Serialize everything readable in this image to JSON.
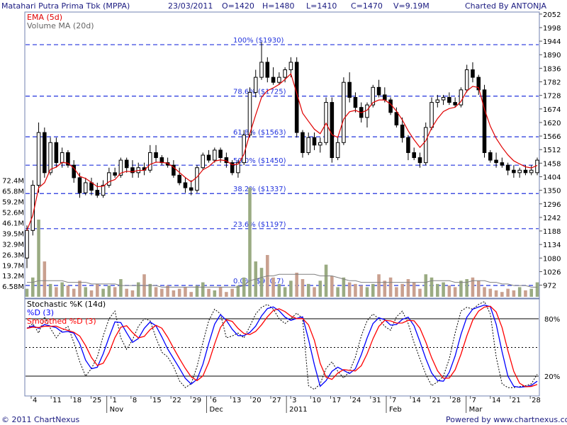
{
  "header": {
    "title": "Matahari Putra Prima Tbk (MPPA)",
    "date": "23/03/2011",
    "open": "O=1420",
    "high": "H=1480",
    "low": "L=1410",
    "close": "C=1470",
    "volume": "V=9.19M",
    "credit": "Charted By ANTONJA"
  },
  "footer": {
    "copyright": "© 2011 ChartNexus",
    "powered": "Powered by www.chartnexus.com"
  },
  "colors": {
    "up_candle": "#ffffff",
    "down_candle": "#000000",
    "ema": "#e00000",
    "volume_ma": "#808080",
    "volume_up": "#9aab82",
    "volume_down": "#c9a08f",
    "fib_line": "#2233dd",
    "stoch_k": "#000000",
    "stoch_d": "#0000ff",
    "stoch_smoothed": "#ff0000",
    "text": "#1a1a80"
  },
  "chart_data": [
    {
      "type": "candlestick",
      "indicator_legend": [
        "EMA (5d)",
        "Volume MA (20d)"
      ],
      "y_ticks": [
        2052,
        1998,
        1944,
        1890,
        1836,
        1782,
        1728,
        1674,
        1620,
        1566,
        1512,
        1458,
        1404,
        1350,
        1296,
        1242,
        1188,
        1134,
        1080,
        1026,
        972
      ],
      "ylim": [
        920,
        2060
      ],
      "x_tick_labels": [
        "4",
        "11",
        "18",
        "25",
        "1",
        "8",
        "15",
        "22",
        "29",
        "6",
        "13",
        "20",
        "27",
        "3",
        "10",
        "17",
        "24",
        "31",
        "7",
        "14",
        "21",
        "28",
        "7",
        "14",
        "21",
        "28"
      ],
      "month_labels": [
        "Nov",
        "Dec",
        "2011",
        "Feb",
        "Mar"
      ],
      "fibonacci": [
        {
          "label": "100%  ($1930)",
          "value": 1930
        },
        {
          "label": "78.6%  ($1725)",
          "value": 1725
        },
        {
          "label": "61.8%  ($1563)",
          "value": 1563
        },
        {
          "label": "50.0%  ($1450)",
          "value": 1450
        },
        {
          "label": "38.2%  ($1337)",
          "value": 1337
        },
        {
          "label": "23.6%  ($1197)",
          "value": 1197
        },
        {
          "label": "0.0%  ($970.7)",
          "value": 970.7
        }
      ],
      "candles": [
        [
          1080,
          1210,
          1040,
          1190
        ],
        [
          1190,
          1390,
          1170,
          1370
        ],
        [
          1370,
          1620,
          1340,
          1580
        ],
        [
          1580,
          1600,
          1400,
          1420
        ],
        [
          1420,
          1560,
          1410,
          1540
        ],
        [
          1540,
          1560,
          1440,
          1460
        ],
        [
          1460,
          1520,
          1440,
          1500
        ],
        [
          1500,
          1510,
          1440,
          1450
        ],
        [
          1450,
          1470,
          1380,
          1400
        ],
        [
          1400,
          1420,
          1320,
          1340
        ],
        [
          1340,
          1400,
          1330,
          1380
        ],
        [
          1380,
          1400,
          1330,
          1350
        ],
        [
          1350,
          1380,
          1320,
          1330
        ],
        [
          1330,
          1390,
          1320,
          1370
        ],
        [
          1370,
          1440,
          1360,
          1420
        ],
        [
          1420,
          1440,
          1400,
          1410
        ],
        [
          1410,
          1480,
          1400,
          1470
        ],
        [
          1470,
          1480,
          1420,
          1440
        ],
        [
          1440,
          1470,
          1400,
          1420
        ],
        [
          1420,
          1460,
          1400,
          1440
        ],
        [
          1440,
          1460,
          1410,
          1430
        ],
        [
          1430,
          1530,
          1420,
          1500
        ],
        [
          1500,
          1530,
          1460,
          1480
        ],
        [
          1480,
          1490,
          1450,
          1460
        ],
        [
          1460,
          1480,
          1440,
          1450
        ],
        [
          1450,
          1470,
          1400,
          1410
        ],
        [
          1410,
          1440,
          1370,
          1380
        ],
        [
          1380,
          1400,
          1340,
          1360
        ],
        [
          1360,
          1390,
          1330,
          1350
        ],
        [
          1350,
          1450,
          1340,
          1440
        ],
        [
          1440,
          1500,
          1430,
          1490
        ],
        [
          1490,
          1510,
          1460,
          1470
        ],
        [
          1470,
          1520,
          1460,
          1510
        ],
        [
          1510,
          1520,
          1460,
          1480
        ],
        [
          1480,
          1500,
          1440,
          1460
        ],
        [
          1460,
          1470,
          1410,
          1420
        ],
        [
          1420,
          1470,
          1400,
          1460
        ],
        [
          1460,
          1590,
          1450,
          1570
        ],
        [
          1570,
          1760,
          1560,
          1740
        ],
        [
          1740,
          1830,
          1720,
          1800
        ],
        [
          1800,
          1940,
          1790,
          1860
        ],
        [
          1860,
          1880,
          1780,
          1800
        ],
        [
          1800,
          1840,
          1770,
          1780
        ],
        [
          1780,
          1820,
          1770,
          1800
        ],
        [
          1800,
          1840,
          1780,
          1830
        ],
        [
          1830,
          1880,
          1800,
          1860
        ],
        [
          1860,
          1880,
          1560,
          1580
        ],
        [
          1580,
          1590,
          1480,
          1500
        ],
        [
          1500,
          1580,
          1490,
          1560
        ],
        [
          1560,
          1580,
          1510,
          1530
        ],
        [
          1530,
          1560,
          1500,
          1540
        ],
        [
          1540,
          1720,
          1530,
          1700
        ],
        [
          1700,
          1720,
          1460,
          1480
        ],
        [
          1480,
          1560,
          1470,
          1540
        ],
        [
          1540,
          1800,
          1530,
          1780
        ],
        [
          1780,
          1820,
          1700,
          1720
        ],
        [
          1720,
          1740,
          1660,
          1680
        ],
        [
          1680,
          1700,
          1620,
          1640
        ],
        [
          1640,
          1700,
          1600,
          1690
        ],
        [
          1690,
          1770,
          1680,
          1760
        ],
        [
          1760,
          1790,
          1720,
          1730
        ],
        [
          1730,
          1760,
          1700,
          1710
        ],
        [
          1710,
          1720,
          1650,
          1660
        ],
        [
          1660,
          1680,
          1600,
          1610
        ],
        [
          1610,
          1640,
          1540,
          1560
        ],
        [
          1560,
          1570,
          1470,
          1500
        ],
        [
          1500,
          1520,
          1470,
          1480
        ],
        [
          1480,
          1500,
          1440,
          1460
        ],
        [
          1460,
          1620,
          1450,
          1600
        ],
        [
          1600,
          1720,
          1590,
          1700
        ],
        [
          1700,
          1730,
          1680,
          1710
        ],
        [
          1710,
          1730,
          1690,
          1720
        ],
        [
          1720,
          1740,
          1690,
          1700
        ],
        [
          1700,
          1720,
          1680,
          1690
        ],
        [
          1690,
          1760,
          1680,
          1750
        ],
        [
          1750,
          1850,
          1740,
          1830
        ],
        [
          1830,
          1860,
          1780,
          1800
        ],
        [
          1800,
          1810,
          1730,
          1750
        ],
        [
          1750,
          1770,
          1480,
          1500
        ],
        [
          1500,
          1510,
          1460,
          1470
        ],
        [
          1470,
          1500,
          1440,
          1460
        ],
        [
          1460,
          1480,
          1440,
          1450
        ],
        [
          1450,
          1460,
          1410,
          1430
        ],
        [
          1430,
          1450,
          1400,
          1420
        ],
        [
          1420,
          1440,
          1400,
          1430
        ],
        [
          1430,
          1450,
          1410,
          1420
        ],
        [
          1420,
          1450,
          1410,
          1430
        ],
        [
          1420,
          1480,
          1410,
          1470
        ]
      ]
    },
    {
      "type": "bar",
      "name": "Volume",
      "y_ticks": [
        "72.4M",
        "65.8M",
        "59.2M",
        "52.6M",
        "46.1M",
        "39.5M",
        "32.9M",
        "26.3M",
        "19.7M",
        "13.2M",
        "6.58M"
      ],
      "ylim": [
        0,
        78
      ],
      "values": [
        5,
        12,
        48,
        22,
        8,
        6,
        9,
        7,
        5,
        10,
        6,
        4,
        8,
        5,
        7,
        6,
        11,
        5,
        4,
        9,
        14,
        8,
        6,
        5,
        7,
        4,
        5,
        6,
        3,
        7,
        9,
        5,
        4,
        6,
        3,
        5,
        7,
        12,
        68,
        22,
        18,
        26,
        12,
        8,
        6,
        10,
        15,
        11,
        8,
        6,
        10,
        20,
        13,
        6,
        12,
        9,
        8,
        7,
        6,
        8,
        14,
        10,
        12,
        6,
        8,
        11,
        9,
        5,
        14,
        12,
        8,
        9,
        7,
        6,
        10,
        11,
        12,
        10,
        6,
        5,
        4,
        3,
        5,
        4,
        6,
        4,
        5,
        9
      ],
      "ma_values": [
        9,
        9,
        10,
        10,
        10,
        10,
        10,
        9,
        9,
        9,
        9,
        8,
        8,
        8,
        8,
        8,
        7,
        7,
        7,
        7,
        7,
        7,
        7,
        6,
        6,
        6,
        6,
        6,
        6,
        6,
        6,
        6,
        6,
        6,
        6,
        6,
        6,
        7,
        10,
        11,
        12,
        13,
        13,
        14,
        14,
        14,
        14,
        14,
        14,
        14,
        13,
        13,
        13,
        12,
        11,
        10,
        10,
        9,
        9,
        9,
        9,
        9,
        9,
        9,
        9,
        9,
        9,
        9,
        9,
        10,
        10,
        10,
        10,
        9,
        9,
        9,
        10,
        10,
        10,
        9,
        9,
        8,
        8,
        7,
        7,
        7,
        6,
        6
      ]
    },
    {
      "type": "line",
      "name": "Stochastic",
      "legend": [
        "Stochastic %K (14d)",
        "%D (3)",
        "Smoothed %D (3)"
      ],
      "y_ticks": [
        "80%",
        "20%"
      ],
      "ylim": [
        0,
        100
      ],
      "k_values": [
        70,
        75,
        65,
        82,
        70,
        60,
        68,
        72,
        55,
        35,
        20,
        28,
        40,
        62,
        80,
        88,
        60,
        48,
        58,
        72,
        80,
        78,
        60,
        45,
        40,
        30,
        15,
        8,
        12,
        30,
        55,
        78,
        90,
        85,
        60,
        62,
        65,
        60,
        72,
        85,
        92,
        95,
        90,
        80,
        75,
        80,
        86,
        80,
        10,
        6,
        12,
        28,
        35,
        25,
        18,
        25,
        40,
        62,
        78,
        85,
        80,
        72,
        68,
        82,
        88,
        75,
        55,
        38,
        22,
        10,
        14,
        20,
        38,
        65,
        88,
        92,
        90,
        95,
        98,
        85,
        40,
        12,
        8,
        8,
        9,
        10,
        12,
        22
      ]
    }
  ]
}
